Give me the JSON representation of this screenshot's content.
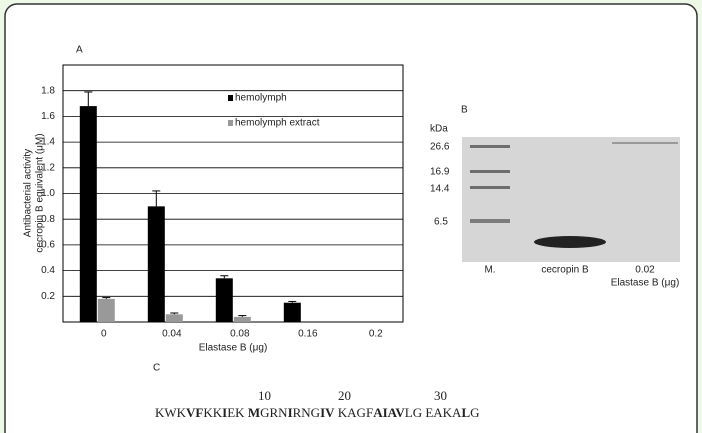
{
  "chart_data": {
    "type": "bar",
    "panel_label": "A",
    "y_label": [
      "Antibacterial activity",
      "cecropin B equivalent (μM)"
    ],
    "x_label": "Elastase B (μg)",
    "categories": [
      "0",
      "0.04",
      "0.08",
      "0.16",
      "0.2"
    ],
    "series": [
      {
        "name": "hemolymph",
        "color": "#000000",
        "values": [
          1.68,
          0.9,
          0.34,
          0.15,
          0
        ],
        "errors": [
          0.11,
          0.12,
          0.02,
          0.01,
          0
        ]
      },
      {
        "name": "hemolymph extract",
        "color": "#999999",
        "values": [
          0.18,
          0.06,
          0.04,
          0,
          0
        ],
        "errors": [
          0.01,
          0.01,
          0.01,
          0,
          0
        ]
      }
    ],
    "ylim": [
      0,
      2
    ],
    "yticks": [
      0.2,
      0.4,
      0.6,
      0.8,
      {
        "value": 1,
        "label": "1.0"
      },
      1.2,
      1.4,
      1.6,
      1.8
    ],
    "grid": true
  },
  "gel": {
    "panel_label": "B",
    "unit": "kDa",
    "markers": [
      "26.6",
      "16.9",
      "14.4",
      "6.5"
    ],
    "lanes": [
      "M.",
      "cecropin B",
      "0.02",
      "Elastase B (μg)"
    ]
  },
  "sequence": {
    "panel_label": "C",
    "numbers": [
      "10",
      "20",
      "30"
    ],
    "segments": [
      {
        "text": "KWK",
        "bold": false
      },
      {
        "text": "VF",
        "bold": true
      },
      {
        "text": "KK",
        "bold": false
      },
      {
        "text": "I",
        "bold": true
      },
      {
        "text": "EK ",
        "bold": false
      },
      {
        "text": "M",
        "bold": true
      },
      {
        "text": "GRN",
        "bold": false
      },
      {
        "text": "I",
        "bold": true
      },
      {
        "text": "RNG",
        "bold": false
      },
      {
        "text": "IV",
        "bold": true
      },
      {
        "text": " KAGF",
        "bold": false
      },
      {
        "text": "AIAV",
        "bold": true
      },
      {
        "text": "LG EAKA",
        "bold": false
      },
      {
        "text": "L",
        "bold": true
      },
      {
        "text": "G",
        "bold": false
      }
    ]
  }
}
